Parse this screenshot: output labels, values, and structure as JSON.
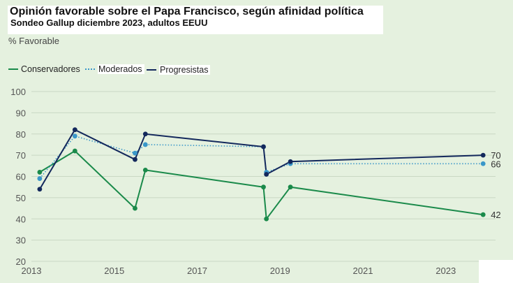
{
  "header": {
    "title": "Opinión favorable sobre el Papa Francisco, según afinidad política",
    "subtitle": "Sondeo Gallup diciembre 2023, adultos EEUU"
  },
  "chart_data": {
    "type": "line",
    "title": "Opinión favorable sobre el Papa Francisco, según afinidad política",
    "subtitle": "Sondeo Gallup diciembre 2023, adultos EEUU",
    "ylabel": "% Favorable",
    "xlabel": "",
    "xlim": [
      2013,
      2024.2
    ],
    "ylim": [
      20,
      100
    ],
    "y_ticks": [
      20,
      30,
      40,
      50,
      60,
      70,
      80,
      90,
      100
    ],
    "x_ticks": [
      2013,
      2015,
      2017,
      2019,
      2021,
      2023
    ],
    "grid": true,
    "legend_position": "top-left",
    "series": [
      {
        "name": "Conservadores",
        "color": "#1a8a4a",
        "style": "solid",
        "x": [
          2013.2,
          2014.05,
          2015.5,
          2015.75,
          2018.6,
          2018.67,
          2019.25,
          2023.9
        ],
        "values": [
          62,
          72,
          45,
          63,
          55,
          40,
          55,
          42
        ],
        "end_label": "42"
      },
      {
        "name": "Moderados",
        "color": "#3a97c9",
        "style": "dotted",
        "x": [
          2013.2,
          2014.05,
          2015.5,
          2015.75,
          2018.6,
          2018.67,
          2019.25,
          2023.9
        ],
        "values": [
          59,
          79,
          71,
          75,
          74,
          62,
          66,
          66
        ],
        "end_label": "66"
      },
      {
        "name": "Progresistas",
        "color": "#13285c",
        "style": "solid",
        "x": [
          2013.2,
          2014.05,
          2015.5,
          2015.75,
          2018.6,
          2018.67,
          2019.25,
          2023.9
        ],
        "values": [
          54,
          82,
          68,
          80,
          74,
          61,
          67,
          70
        ],
        "end_label": "70"
      }
    ]
  }
}
